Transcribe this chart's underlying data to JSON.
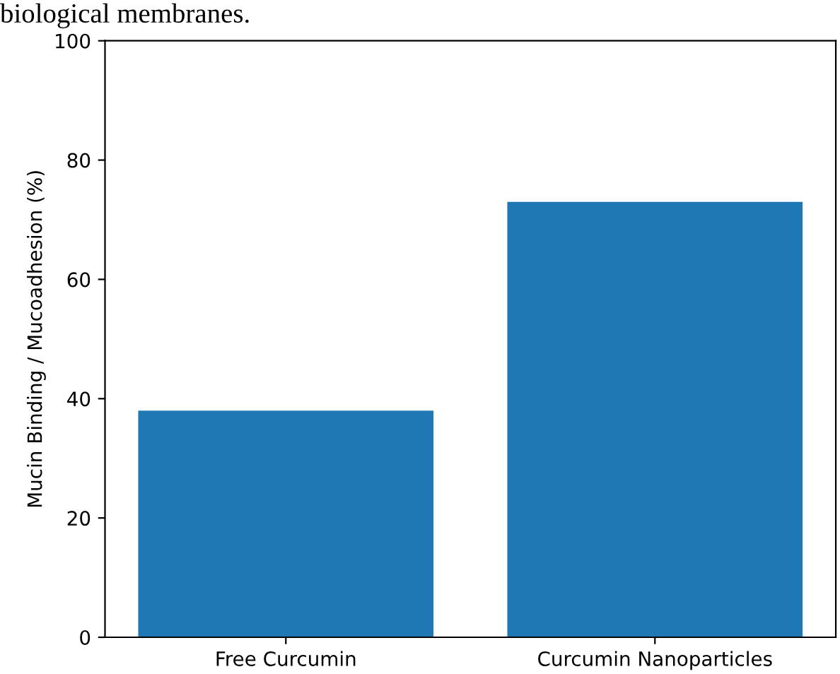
{
  "chart_data": {
    "type": "bar",
    "ylabel": "Mucin Binding / Mucoadhesion (%)",
    "categories": [
      "Free Curcumin",
      "Curcumin Nanoparticles"
    ],
    "values": [
      38,
      73
    ],
    "color": "#1f77b4",
    "ylim": [
      0,
      100
    ],
    "yticks": [
      0,
      20,
      40,
      60,
      80,
      100
    ],
    "grid": false,
    "legend": false,
    "annotations": [
      "biological membranes."
    ]
  }
}
